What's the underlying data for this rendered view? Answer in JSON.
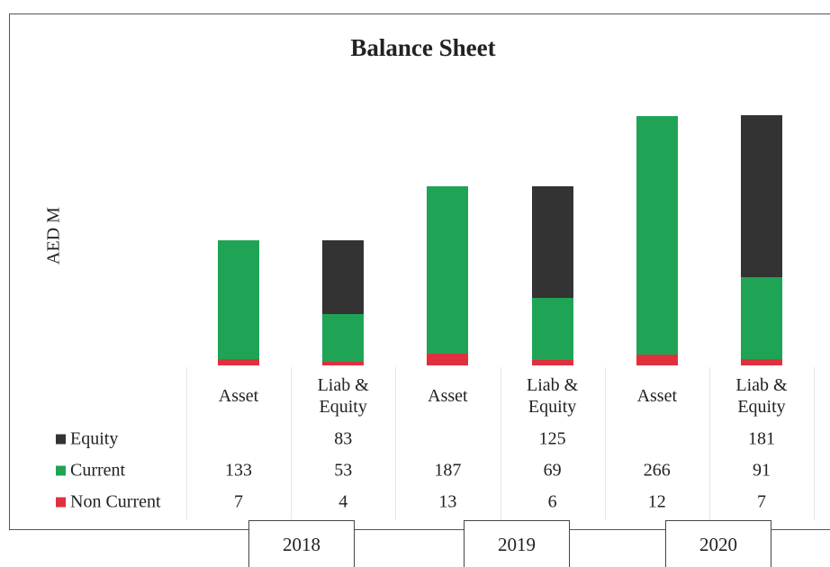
{
  "chart_data": {
    "type": "stacked_bar",
    "title": "Balance Sheet",
    "y_label": "AED M",
    "categories": [
      "Asset",
      "Liab & Equity",
      "Asset",
      "Liab & Equity",
      "Asset",
      "Liab & Equity"
    ],
    "groups": [
      "2018",
      "2019",
      "2020"
    ],
    "series": [
      {
        "name": "Non Current",
        "color": "#e0303e",
        "values": [
          7,
          4,
          13,
          6,
          12,
          7
        ]
      },
      {
        "name": "Current",
        "color": "#1fa455",
        "values": [
          133,
          53,
          187,
          69,
          266,
          91
        ]
      },
      {
        "name": "Equity",
        "color": "#333333",
        "values": [
          null,
          83,
          null,
          125,
          null,
          181
        ]
      }
    ]
  }
}
